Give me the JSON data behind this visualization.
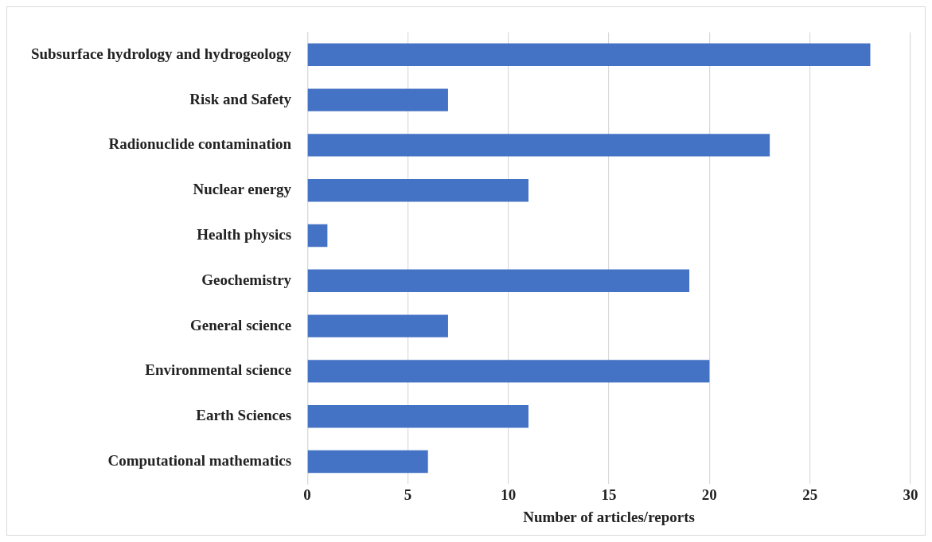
{
  "chart_data": {
    "type": "bar",
    "orientation": "horizontal",
    "xlabel": "Number of articles/reports",
    "categories": [
      "Subsurface hydrology and hydrogeology",
      "Risk and Safety",
      "Radionuclide contamination",
      "Nuclear energy",
      "Health physics",
      "Geochemistry",
      "General science",
      "Environmental science",
      "Earth Sciences",
      "Computational mathematics"
    ],
    "values": [
      28,
      7,
      23,
      11,
      1,
      19,
      7,
      20,
      11,
      6
    ],
    "color": "#4472c4",
    "xlim": [
      0,
      30
    ],
    "xticks": [
      0,
      5,
      10,
      15,
      20,
      25,
      30
    ],
    "grid": "x",
    "legend": false
  }
}
